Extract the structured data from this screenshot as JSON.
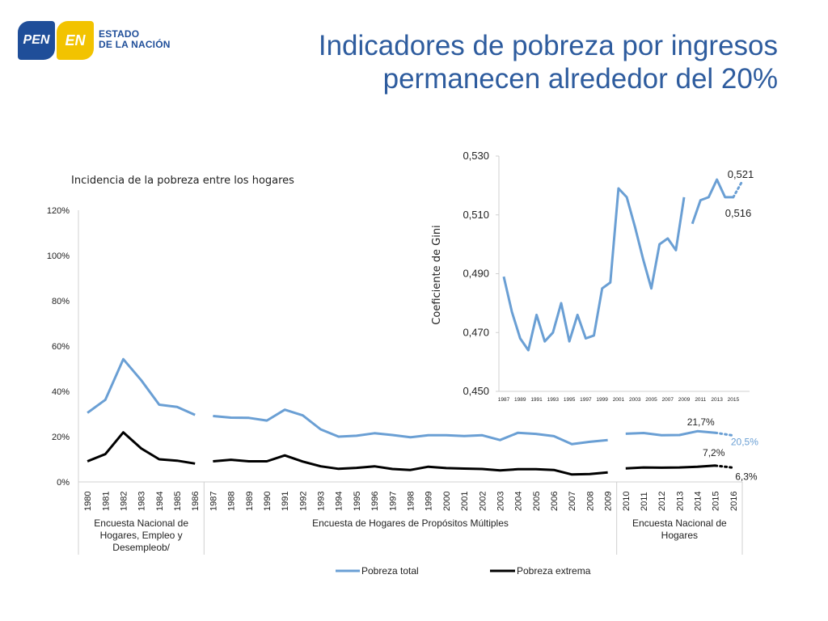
{
  "logo": {
    "pen": "PEN",
    "en": "EN",
    "line1": "ESTADO",
    "line2": "DE LA NACIÓN"
  },
  "title": {
    "line1": "Indicadores de pobreza por ingresos",
    "line2": "permanecen alrededor del 20%"
  },
  "colors": {
    "pobreza_total": "#6a9fd4",
    "pobreza_extrema": "#000000",
    "title": "#2e5c9e"
  },
  "chart_data": [
    {
      "type": "line",
      "title": "Incidencia de la pobreza entre los hogares",
      "ylim": [
        0,
        120
      ],
      "yticks": [
        "0%",
        "20%",
        "40%",
        "60%",
        "80%",
        "100%",
        "120%"
      ],
      "categories": [
        "1980",
        "1981",
        "1982",
        "1983",
        "1984",
        "1985",
        "1986",
        "1987",
        "1988",
        "1989",
        "1990",
        "1991",
        "1992",
        "1993",
        "1994",
        "1995",
        "1996",
        "1997",
        "1998",
        "1999",
        "2000",
        "2001",
        "2002",
        "2003",
        "2004",
        "2005",
        "2006",
        "2007",
        "2008",
        "2009",
        "2010",
        "2011",
        "2012",
        "2013",
        "2014",
        "2015",
        "2016"
      ],
      "groups": [
        {
          "label_lines": [
            "Encuesta Nacional de",
            "Hogares, Empleo y",
            "Desempleob/"
          ]
        },
        {
          "label_lines": [
            "Encuesta de Hogares de Propósitos Múltiples"
          ]
        },
        {
          "label_lines": [
            "Encuesta Nacional de",
            "Hogares"
          ]
        }
      ],
      "series": [
        {
          "name": "Pobreza total",
          "values": [
            30.5,
            36.3,
            54.2,
            44.9,
            34.1,
            33.1,
            29.6,
            29.1,
            28.4,
            28.3,
            27.1,
            31.9,
            29.4,
            23.2,
            20.0,
            20.4,
            21.5,
            20.7,
            19.7,
            20.6,
            20.6,
            20.3,
            20.6,
            18.5,
            21.7,
            21.2,
            20.2,
            16.7,
            17.7,
            18.5,
            21.3,
            21.6,
            20.6,
            20.7,
            22.4,
            21.7,
            20.5
          ]
        },
        {
          "name": "Pobreza extrema",
          "values": [
            9.1,
            12.3,
            21.9,
            14.8,
            10.0,
            9.4,
            8.1,
            9.1,
            9.8,
            9.1,
            9.1,
            11.7,
            9.0,
            6.9,
            5.8,
            6.2,
            6.9,
            5.7,
            5.3,
            6.7,
            6.1,
            5.9,
            5.7,
            5.1,
            5.6,
            5.6,
            5.3,
            3.3,
            3.5,
            4.2,
            6.0,
            6.4,
            6.3,
            6.4,
            6.7,
            7.2,
            6.3
          ]
        }
      ],
      "annotations": {
        "total_2015": "21,7%",
        "total_2016": "20,5%",
        "extrema_2015": "7,2%",
        "extrema_2016": "6,3%"
      },
      "legend": {
        "position": "bottom",
        "items": [
          "Pobreza total",
          "Pobreza extrema"
        ]
      }
    },
    {
      "type": "line",
      "ylabel": "Coeficiente de Gini",
      "ylim": [
        0.45,
        0.53
      ],
      "yticks": [
        "0,450",
        "0,470",
        "0,490",
        "0,510",
        "0,530"
      ],
      "xticks": [
        "1987",
        "1989",
        "1991",
        "1993",
        "1995",
        "1997",
        "1999",
        "2001",
        "2003",
        "2005",
        "2007",
        "2009",
        "2011",
        "2013",
        "2015"
      ],
      "series": [
        {
          "name": "Coeficiente de Gini",
          "x": [
            1987,
            1988,
            1989,
            1990,
            1991,
            1992,
            1993,
            1994,
            1995,
            1996,
            1997,
            1998,
            1999,
            2000,
            2001,
            2002,
            2003,
            2004,
            2005,
            2006,
            2007,
            2008,
            2009,
            2010,
            2011,
            2012,
            2013,
            2014,
            2015,
            2016
          ],
          "values": [
            0.489,
            0.477,
            0.468,
            0.464,
            0.476,
            0.467,
            0.47,
            0.48,
            0.467,
            0.476,
            0.468,
            0.469,
            0.485,
            0.487,
            0.519,
            0.516,
            0.506,
            0.495,
            0.485,
            0.5,
            0.502,
            0.498,
            0.516,
            0.507,
            0.515,
            0.516,
            0.522,
            0.516,
            0.516,
            0.521
          ]
        }
      ],
      "annotations": {
        "last": "0,521",
        "prev": "0,516"
      }
    }
  ]
}
